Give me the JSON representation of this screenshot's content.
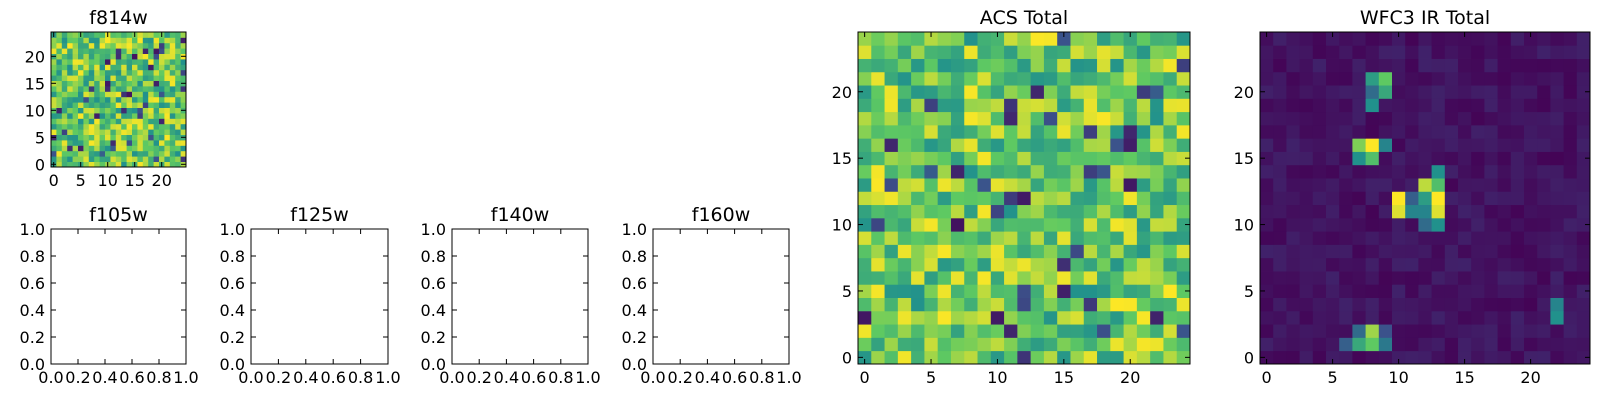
{
  "chart_data": [
    {
      "id": "f814w",
      "type": "heatmap",
      "title": "f814w",
      "xticks": [
        "0",
        "5",
        "10",
        "15",
        "20"
      ],
      "yticks": [
        "0",
        "5",
        "10",
        "15",
        "20"
      ],
      "xlim": [
        -0.5,
        24.5
      ],
      "ylim": [
        -0.5,
        24.5
      ],
      "grid_size": 25,
      "colormap": "viridis",
      "pattern": "noise",
      "seed": 814
    },
    {
      "id": "f105w",
      "type": "empty",
      "title": "f105w",
      "xticks": [
        "0.0",
        "0.2",
        "0.4",
        "0.6",
        "0.8",
        "1.0"
      ],
      "yticks": [
        "0.0",
        "0.2",
        "0.4",
        "0.6",
        "0.8",
        "1.0"
      ],
      "xlim": [
        0,
        1
      ],
      "ylim": [
        0,
        1
      ]
    },
    {
      "id": "f125w",
      "type": "empty",
      "title": "f125w",
      "xticks": [
        "0.0",
        "0.2",
        "0.4",
        "0.6",
        "0.8",
        "1.0"
      ],
      "yticks": [
        "0.0",
        "0.2",
        "0.4",
        "0.6",
        "0.8",
        "1.0"
      ],
      "xlim": [
        0,
        1
      ],
      "ylim": [
        0,
        1
      ]
    },
    {
      "id": "f140w",
      "type": "empty",
      "title": "f140w",
      "xticks": [
        "0.0",
        "0.2",
        "0.4",
        "0.6",
        "0.8",
        "1.0"
      ],
      "yticks": [
        "0.0",
        "0.2",
        "0.4",
        "0.6",
        "0.8",
        "1.0"
      ],
      "xlim": [
        0,
        1
      ],
      "ylim": [
        0,
        1
      ]
    },
    {
      "id": "f160w",
      "type": "empty",
      "title": "f160w",
      "xticks": [
        "0.0",
        "0.2",
        "0.4",
        "0.6",
        "0.8",
        "1.0"
      ],
      "yticks": [
        "0.0",
        "0.2",
        "0.4",
        "0.6",
        "0.8",
        "1.0"
      ],
      "xlim": [
        0,
        1
      ],
      "ylim": [
        0,
        1
      ]
    },
    {
      "id": "acs-total",
      "type": "heatmap",
      "title": "ACS Total",
      "xticks": [
        "0",
        "5",
        "10",
        "15",
        "20"
      ],
      "yticks": [
        "0",
        "5",
        "10",
        "15",
        "20"
      ],
      "xlim": [
        -0.5,
        24.5
      ],
      "ylim": [
        -0.5,
        24.5
      ],
      "grid_size": 25,
      "colormap": "viridis",
      "pattern": "noise",
      "seed": 4242
    },
    {
      "id": "wfc3-ir-total",
      "type": "heatmap",
      "title": "WFC3 IR Total",
      "xticks": [
        "0",
        "5",
        "10",
        "15",
        "20"
      ],
      "yticks": [
        "0",
        "5",
        "10",
        "15",
        "20"
      ],
      "xlim": [
        -0.5,
        24.5
      ],
      "ylim": [
        -0.5,
        24.5
      ],
      "grid_size": 25,
      "colormap": "viridis",
      "pattern": "sparse",
      "seed": 31,
      "bright_pixels": [
        {
          "col": 8,
          "row": 16,
          "value": 1.0
        },
        {
          "col": 7,
          "row": 16,
          "value": 0.8
        },
        {
          "col": 8,
          "row": 15,
          "value": 0.7
        },
        {
          "col": 7,
          "row": 15,
          "value": 0.5
        },
        {
          "col": 9,
          "row": 16,
          "value": 0.45
        },
        {
          "col": 9,
          "row": 21,
          "value": 0.75
        },
        {
          "col": 8,
          "row": 21,
          "value": 0.55
        },
        {
          "col": 9,
          "row": 20,
          "value": 0.6
        },
        {
          "col": 8,
          "row": 20,
          "value": 0.35
        },
        {
          "col": 8,
          "row": 19,
          "value": 0.5
        },
        {
          "col": 10,
          "row": 12,
          "value": 1.0
        },
        {
          "col": 10,
          "row": 11,
          "value": 0.95
        },
        {
          "col": 11,
          "row": 11,
          "value": 0.45
        },
        {
          "col": 11,
          "row": 12,
          "value": 0.3
        },
        {
          "col": 12,
          "row": 13,
          "value": 0.9
        },
        {
          "col": 12,
          "row": 12,
          "value": 0.55
        },
        {
          "col": 12,
          "row": 11,
          "value": 0.45
        },
        {
          "col": 13,
          "row": 12,
          "value": 1.0
        },
        {
          "col": 13,
          "row": 11,
          "value": 0.95
        },
        {
          "col": 13,
          "row": 13,
          "value": 0.7
        },
        {
          "col": 13,
          "row": 14,
          "value": 0.5
        },
        {
          "col": 12,
          "row": 10,
          "value": 0.35
        },
        {
          "col": 13,
          "row": 10,
          "value": 0.5
        },
        {
          "col": 8,
          "row": 2,
          "value": 0.85
        },
        {
          "col": 8,
          "row": 1,
          "value": 0.75
        },
        {
          "col": 7,
          "row": 1,
          "value": 0.6
        },
        {
          "col": 7,
          "row": 2,
          "value": 0.35
        },
        {
          "col": 9,
          "row": 1,
          "value": 0.4
        },
        {
          "col": 6,
          "row": 1,
          "value": 0.3
        },
        {
          "col": 9,
          "row": 2,
          "value": 0.25
        },
        {
          "col": 22,
          "row": 3,
          "value": 0.5
        },
        {
          "col": 22,
          "row": 4,
          "value": 0.45
        }
      ]
    }
  ]
}
